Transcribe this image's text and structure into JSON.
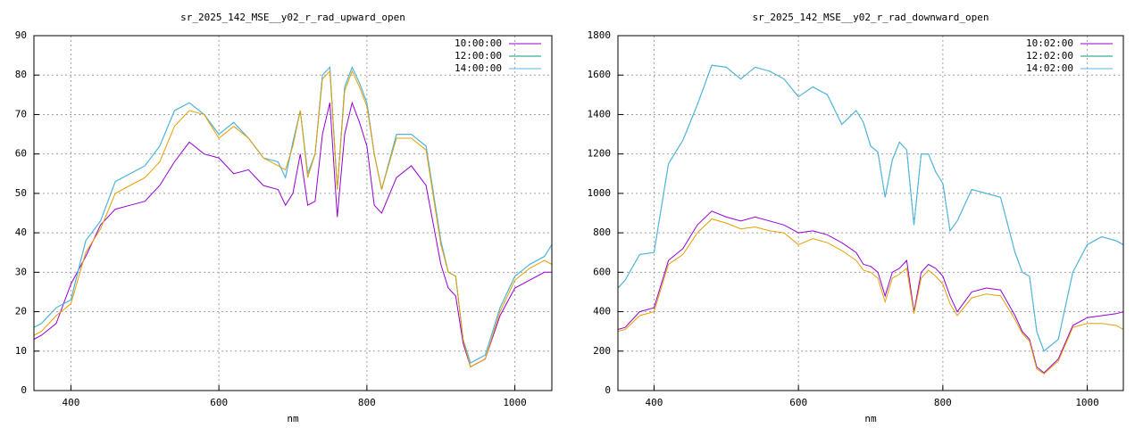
{
  "chart_data": [
    {
      "type": "line",
      "title": "sr_2025_142_MSE__y02_r_rad_upward_open",
      "xlabel": "nm",
      "xlim": [
        350,
        1050
      ],
      "ylim": [
        0,
        90
      ],
      "xticks": [
        400,
        600,
        800,
        1000
      ],
      "yticks": [
        0,
        10,
        20,
        30,
        40,
        50,
        60,
        70,
        80,
        90
      ],
      "grid": true,
      "legend": "top-right",
      "x": [
        350,
        360,
        380,
        400,
        420,
        440,
        460,
        480,
        500,
        520,
        540,
        560,
        580,
        600,
        620,
        640,
        660,
        680,
        690,
        700,
        710,
        720,
        730,
        740,
        750,
        760,
        770,
        780,
        790,
        800,
        810,
        820,
        840,
        860,
        880,
        900,
        910,
        920,
        930,
        940,
        960,
        980,
        1000,
        1020,
        1040,
        1050
      ],
      "series": [
        {
          "name": "10:00:00",
          "color": "#9400d3",
          "values": [
            13,
            14,
            17,
            27,
            34,
            42,
            46,
            47,
            48,
            52,
            58,
            63,
            60,
            59,
            55,
            56,
            52,
            51,
            47,
            50,
            60,
            47,
            48,
            65,
            73,
            44,
            65,
            73,
            68,
            62,
            47,
            45,
            54,
            57,
            52,
            32,
            26,
            24,
            12,
            6,
            8,
            19,
            26,
            28,
            30,
            30
          ]
        },
        {
          "name": "12:00:00",
          "color": "#009e73",
          "values": [
            16,
            17,
            21,
            23,
            38,
            43,
            53,
            55,
            57,
            62,
            71,
            73,
            70,
            65,
            68,
            64,
            59,
            58,
            54,
            63,
            71,
            55,
            60,
            80,
            82,
            51,
            77,
            82,
            78,
            73,
            60,
            51,
            65,
            65,
            62,
            38,
            30,
            29,
            13,
            7,
            9,
            21,
            29,
            32,
            34,
            37
          ]
        },
        {
          "name": "14:00:00",
          "color": "#56b4e9",
          "values": [
            16,
            17,
            21,
            23,
            38,
            43,
            53,
            55,
            57,
            62,
            71,
            73,
            70,
            65,
            68,
            64,
            59,
            58,
            54,
            63,
            71,
            55,
            60,
            80,
            82,
            51,
            77,
            82,
            78,
            73,
            60,
            51,
            65,
            65,
            62,
            38,
            30,
            29,
            13,
            7,
            9,
            21,
            29,
            32,
            34,
            37
          ]
        },
        {
          "color": "#e69f00",
          "values": [
            14,
            15,
            19,
            22,
            35,
            41,
            50,
            52,
            54,
            58,
            67,
            71,
            70,
            64,
            67,
            64,
            59,
            57,
            56,
            62,
            71,
            54,
            60,
            79,
            81,
            51,
            76,
            81,
            77,
            72,
            60,
            51,
            64,
            64,
            61,
            37,
            30,
            29,
            13,
            6,
            8,
            20,
            28,
            31,
            33,
            32
          ]
        }
      ]
    },
    {
      "type": "line",
      "title": "sr_2025_142_MSE__y02_r_rad_downward_open",
      "xlabel": "nm",
      "xlim": [
        350,
        1050
      ],
      "ylim": [
        0,
        1800
      ],
      "xticks": [
        400,
        600,
        800,
        1000
      ],
      "yticks": [
        0,
        200,
        400,
        600,
        800,
        1000,
        1200,
        1400,
        1600,
        1800
      ],
      "grid": true,
      "legend": "top-right",
      "x": [
        350,
        360,
        380,
        400,
        420,
        440,
        460,
        480,
        500,
        520,
        540,
        560,
        580,
        600,
        620,
        640,
        660,
        680,
        690,
        700,
        710,
        720,
        730,
        740,
        750,
        760,
        770,
        780,
        790,
        800,
        810,
        820,
        840,
        860,
        880,
        900,
        910,
        920,
        930,
        940,
        960,
        980,
        1000,
        1020,
        1040,
        1050
      ],
      "series": [
        {
          "name": "10:02:00",
          "color": "#9400d3",
          "values": [
            310,
            320,
            400,
            420,
            660,
            720,
            840,
            910,
            880,
            860,
            880,
            860,
            840,
            800,
            810,
            790,
            750,
            700,
            640,
            630,
            600,
            480,
            600,
            620,
            660,
            400,
            600,
            640,
            620,
            580,
            480,
            400,
            500,
            520,
            510,
            380,
            300,
            260,
            120,
            90,
            160,
            330,
            370,
            380,
            390,
            400
          ]
        },
        {
          "name": "12:02:00",
          "color": "#009e73",
          "values": [
            520,
            560,
            690,
            700,
            1150,
            1270,
            1450,
            1650,
            1640,
            1580,
            1640,
            1620,
            1580,
            1490,
            1540,
            1500,
            1350,
            1420,
            1360,
            1240,
            1210,
            980,
            1170,
            1260,
            1220,
            840,
            1200,
            1200,
            1110,
            1050,
            810,
            860,
            1020,
            1000,
            980,
            700,
            600,
            580,
            300,
            200,
            260,
            600,
            740,
            780,
            760,
            740
          ]
        },
        {
          "name": "14:02:00",
          "color": "#56b4e9",
          "values": [
            520,
            560,
            690,
            700,
            1150,
            1270,
            1450,
            1650,
            1640,
            1580,
            1640,
            1620,
            1580,
            1490,
            1540,
            1500,
            1350,
            1420,
            1360,
            1240,
            1210,
            980,
            1170,
            1260,
            1220,
            840,
            1200,
            1200,
            1110,
            1050,
            810,
            860,
            1020,
            1000,
            980,
            700,
            600,
            580,
            300,
            200,
            260,
            600,
            740,
            780,
            760,
            740
          ]
        },
        {
          "color": "#e69f00",
          "values": [
            300,
            310,
            380,
            400,
            640,
            690,
            800,
            870,
            850,
            820,
            830,
            810,
            800,
            740,
            770,
            750,
            710,
            660,
            610,
            600,
            570,
            450,
            570,
            590,
            620,
            390,
            570,
            610,
            580,
            540,
            440,
            380,
            470,
            490,
            480,
            360,
            290,
            250,
            110,
            85,
            150,
            320,
            340,
            340,
            330,
            310
          ]
        }
      ]
    }
  ]
}
